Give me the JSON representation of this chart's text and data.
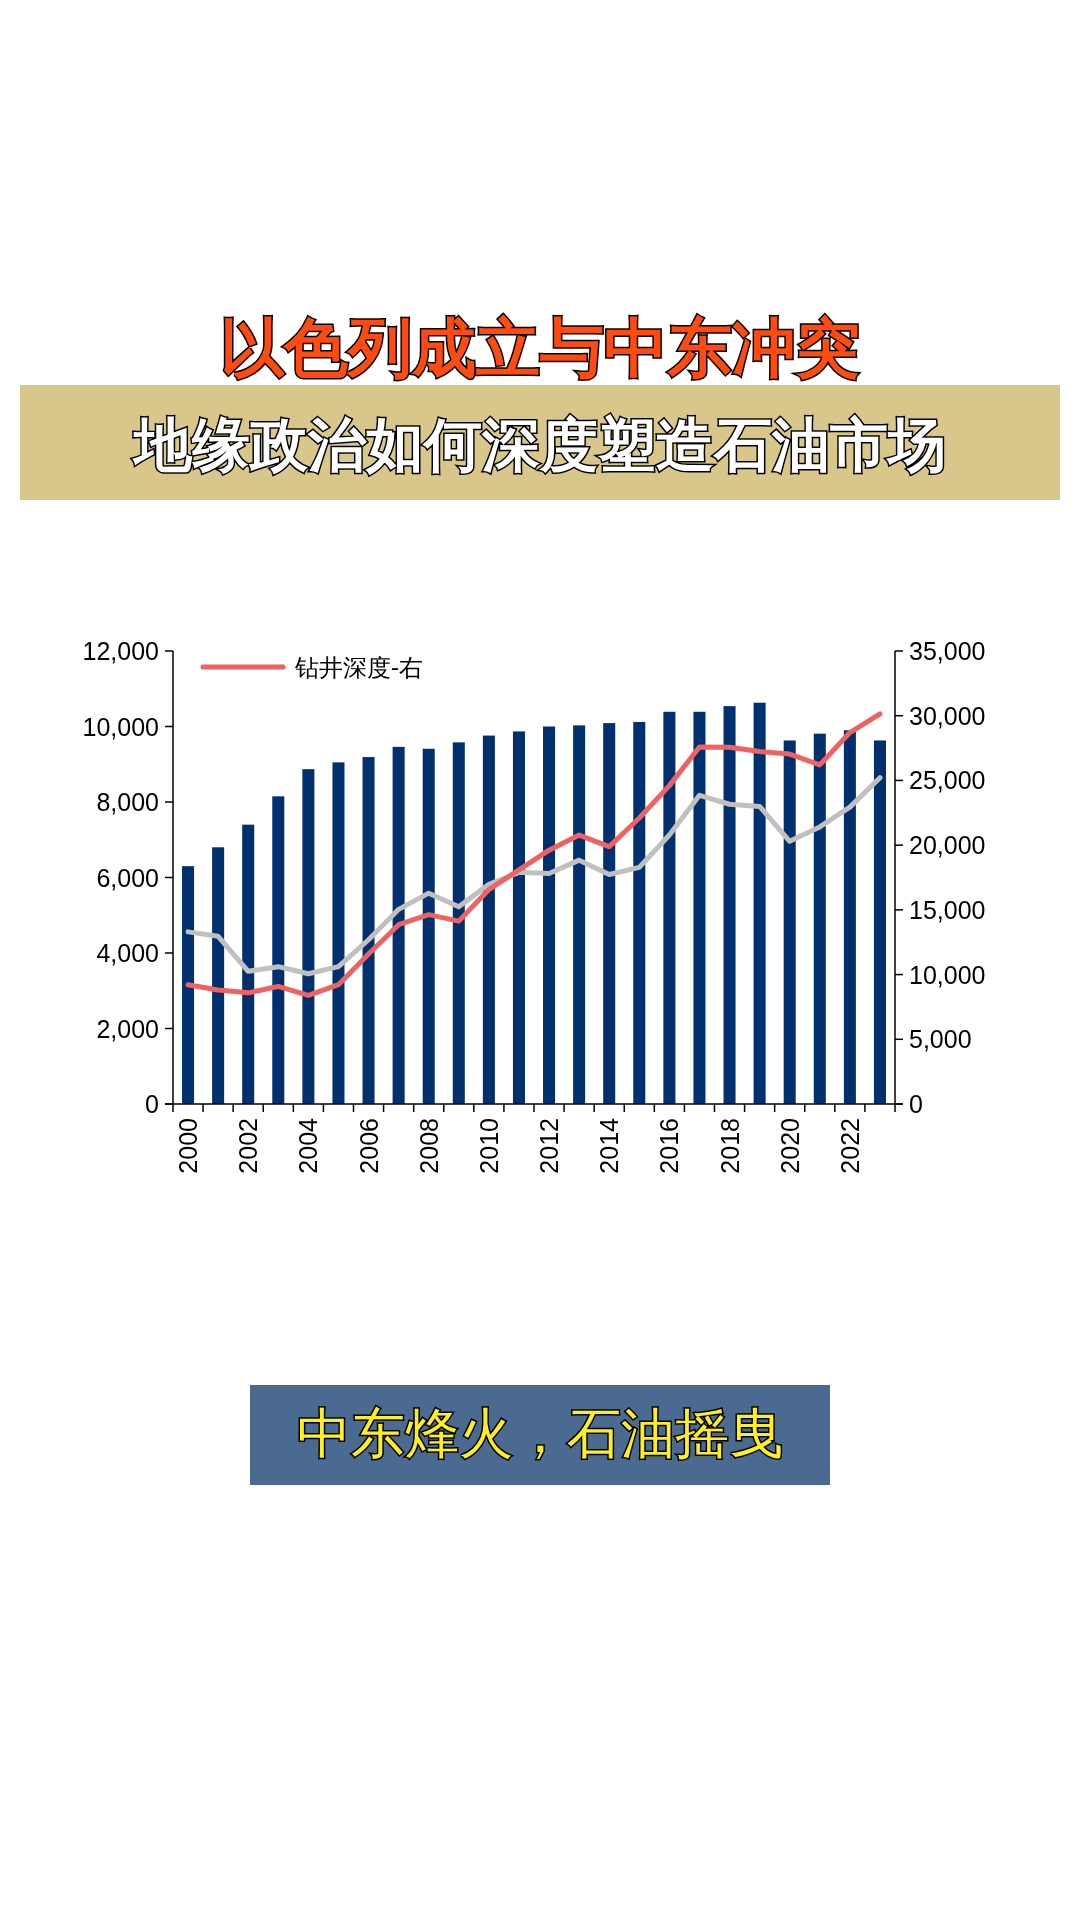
{
  "chart_data": {
    "type": "bar",
    "title": "以色列成立与中东冲突",
    "subtitle": "地缘政治如何深度塑造石油市场",
    "annotations": [
      "中东烽火，石油摇曳"
    ],
    "categories": [
      "2000",
      null,
      "2002",
      null,
      "2004",
      null,
      "2006",
      null,
      "2008",
      null,
      "2010",
      null,
      "2012",
      null,
      "2014",
      null,
      "2016",
      null,
      "2018",
      null,
      "2020",
      null,
      "2022",
      null
    ],
    "series": [
      {
        "color": "#00306e",
        "values": [
          6300,
          6800,
          7400,
          8150,
          8870,
          9050,
          9190,
          9460,
          9410,
          9580,
          9760,
          9870,
          10000,
          10030,
          10090,
          10120,
          10390,
          10390,
          10540,
          10630,
          9630,
          9810,
          9900,
          9630
        ]
      },
      {
        "type": "line",
        "axis": "y2",
        "color": "#c0c0c0",
        "values": [
          13300,
          12960,
          10250,
          10610,
          10060,
          10610,
          12690,
          15040,
          16290,
          15240,
          16980,
          17900,
          17810,
          18840,
          17730,
          18280,
          20780,
          23850,
          23160,
          22990,
          20300,
          21410,
          22940,
          25210
        ]
      },
      {
        "type": "line",
        "axis": "y2",
        "name": "钻井深度-右",
        "color": "#f06262",
        "values": [
          9220,
          8810,
          8590,
          9090,
          8390,
          9220,
          11580,
          13850,
          14630,
          14130,
          16570,
          18090,
          19610,
          20780,
          19890,
          22100,
          24600,
          27590,
          27560,
          27230,
          27040,
          26200,
          28700,
          30140
        ]
      }
    ],
    "ylim": [
      0,
      12000
    ],
    "yticks": [
      {
        "value": 0,
        "label": "0"
      },
      {
        "value": 2000,
        "label": "2,000"
      },
      {
        "value": 4000,
        "label": "4,000"
      },
      {
        "value": 6000,
        "label": "6,000"
      },
      {
        "value": 8000,
        "label": "8,000"
      },
      {
        "value": 10000,
        "label": "10,000"
      },
      {
        "value": 12000,
        "label": "12,000"
      }
    ],
    "y2lim": [
      0,
      35000
    ],
    "y2ticks": [
      {
        "value": 0,
        "label": "0"
      },
      {
        "value": 5000,
        "label": "5,000"
      },
      {
        "value": 10000,
        "label": "10,000"
      },
      {
        "value": 15000,
        "label": "15,000"
      },
      {
        "value": 20000,
        "label": "20,000"
      },
      {
        "value": 25000,
        "label": "25,000"
      },
      {
        "value": 30000,
        "label": "30,000"
      },
      {
        "value": 35000,
        "label": "35,000"
      }
    ],
    "legend": "top left"
  }
}
